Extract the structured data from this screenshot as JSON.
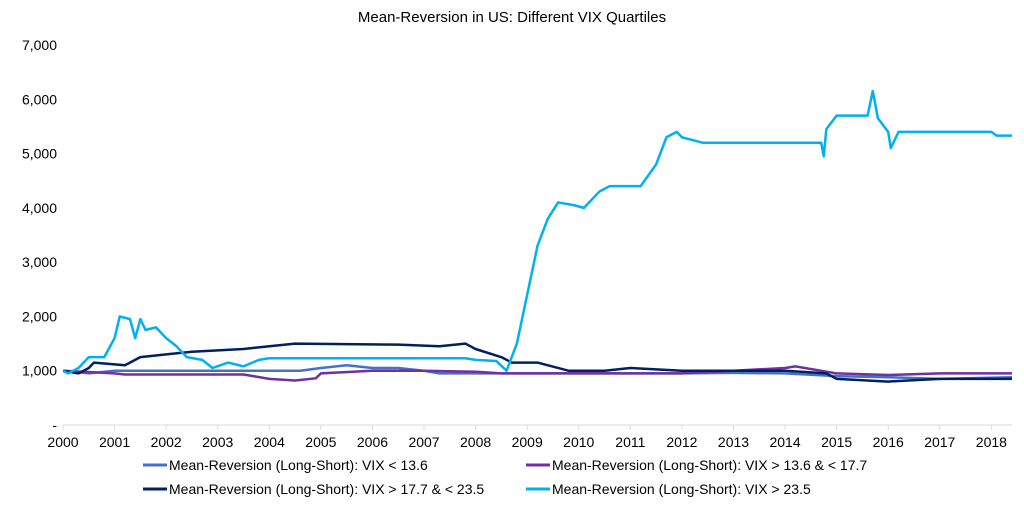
{
  "chart_data": {
    "type": "line",
    "title": "Mean-Reversion in US: Different VIX Quartiles",
    "xlabel": "",
    "ylabel": "",
    "xlim": [
      2000,
      2018.4
    ],
    "ylim": [
      0,
      7000
    ],
    "x_ticks": [
      "2000",
      "2001",
      "2002",
      "2003",
      "2004",
      "2005",
      "2006",
      "2007",
      "2008",
      "2009",
      "2010",
      "2011",
      "2012",
      "2013",
      "2014",
      "2015",
      "2016",
      "2017",
      "2018"
    ],
    "y_ticks": [
      "-",
      "1,000",
      "2,000",
      "3,000",
      "4,000",
      "5,000",
      "6,000",
      "7,000"
    ],
    "grid": false,
    "legend": "bottom",
    "series": [
      {
        "name": "Mean-Reversion (Long-Short): VIX < 13.6",
        "color": "#4472C4",
        "points": [
          [
            2000,
            1000
          ],
          [
            2000.5,
            950
          ],
          [
            2001,
            1000
          ],
          [
            2004.6,
            1000
          ],
          [
            2005,
            1050
          ],
          [
            2005.5,
            1100
          ],
          [
            2006,
            1050
          ],
          [
            2006.5,
            1050
          ],
          [
            2007,
            1000
          ],
          [
            2007.3,
            950
          ],
          [
            2008,
            950
          ],
          [
            2012,
            950
          ],
          [
            2013,
            960
          ],
          [
            2014,
            950
          ],
          [
            2015,
            900
          ],
          [
            2016,
            880
          ],
          [
            2017,
            850
          ],
          [
            2018.4,
            880
          ]
        ]
      },
      {
        "name": "Mean-Reversion (Long-Short): VIX > 13.6 & < 17.7",
        "color": "#7030A0",
        "points": [
          [
            2000,
            1000
          ],
          [
            2001,
            950
          ],
          [
            2001.2,
            930
          ],
          [
            2003.5,
            930
          ],
          [
            2004,
            850
          ],
          [
            2004.5,
            820
          ],
          [
            2004.9,
            860
          ],
          [
            2005,
            950
          ],
          [
            2006,
            1000
          ],
          [
            2007,
            1000
          ],
          [
            2008,
            980
          ],
          [
            2008.5,
            950
          ],
          [
            2010,
            950
          ],
          [
            2012,
            950
          ],
          [
            2013,
            1000
          ],
          [
            2014,
            1050
          ],
          [
            2014.2,
            1080
          ],
          [
            2015,
            950
          ],
          [
            2016,
            920
          ],
          [
            2017,
            950
          ],
          [
            2018.4,
            950
          ]
        ]
      },
      {
        "name": "Mean-Reversion (Long-Short): VIX > 17.7 & < 23.5",
        "color": "#002060",
        "points": [
          [
            2000,
            1000
          ],
          [
            2000.3,
            950
          ],
          [
            2000.5,
            1050
          ],
          [
            2000.6,
            1150
          ],
          [
            2001.2,
            1100
          ],
          [
            2001.5,
            1250
          ],
          [
            2002,
            1300
          ],
          [
            2002.5,
            1350
          ],
          [
            2003.5,
            1400
          ],
          [
            2004,
            1450
          ],
          [
            2004.5,
            1500
          ],
          [
            2006.5,
            1480
          ],
          [
            2007.3,
            1450
          ],
          [
            2007.8,
            1500
          ],
          [
            2008,
            1400
          ],
          [
            2008.5,
            1250
          ],
          [
            2008.7,
            1150
          ],
          [
            2009.2,
            1150
          ],
          [
            2009.8,
            1000
          ],
          [
            2010.5,
            1000
          ],
          [
            2011,
            1050
          ],
          [
            2012,
            1000
          ],
          [
            2013,
            1000
          ],
          [
            2014,
            1000
          ],
          [
            2014.8,
            950
          ],
          [
            2015,
            850
          ],
          [
            2016,
            800
          ],
          [
            2017,
            850
          ],
          [
            2018.4,
            850
          ]
        ]
      },
      {
        "name": "Mean-Reversion (Long-Short): VIX > 23.5",
        "color": "#00B0F0",
        "points": [
          [
            2000,
            1000
          ],
          [
            2000.1,
            950
          ],
          [
            2000.3,
            1050
          ],
          [
            2000.5,
            1250
          ],
          [
            2000.8,
            1250
          ],
          [
            2001,
            1600
          ],
          [
            2001.1,
            2000
          ],
          [
            2001.3,
            1950
          ],
          [
            2001.4,
            1600
          ],
          [
            2001.5,
            1950
          ],
          [
            2001.6,
            1750
          ],
          [
            2001.8,
            1800
          ],
          [
            2002,
            1600
          ],
          [
            2002.2,
            1450
          ],
          [
            2002.4,
            1250
          ],
          [
            2002.7,
            1200
          ],
          [
            2002.9,
            1050
          ],
          [
            2003.2,
            1150
          ],
          [
            2003.5,
            1080
          ],
          [
            2003.8,
            1200
          ],
          [
            2004,
            1230
          ],
          [
            2007.8,
            1230
          ],
          [
            2008,
            1200
          ],
          [
            2008.4,
            1180
          ],
          [
            2008.6,
            1000
          ],
          [
            2008.8,
            1500
          ],
          [
            2009,
            2400
          ],
          [
            2009.2,
            3300
          ],
          [
            2009.4,
            3800
          ],
          [
            2009.6,
            4100
          ],
          [
            2009.9,
            4050
          ],
          [
            2010.1,
            4000
          ],
          [
            2010.4,
            4300
          ],
          [
            2010.6,
            4400
          ],
          [
            2011.2,
            4400
          ],
          [
            2011.5,
            4800
          ],
          [
            2011.7,
            5300
          ],
          [
            2011.9,
            5400
          ],
          [
            2012,
            5300
          ],
          [
            2012.4,
            5200
          ],
          [
            2014.7,
            5200
          ],
          [
            2014.75,
            4950
          ],
          [
            2014.8,
            5450
          ],
          [
            2015,
            5700
          ],
          [
            2015.6,
            5700
          ],
          [
            2015.7,
            6150
          ],
          [
            2015.8,
            5650
          ],
          [
            2016,
            5400
          ],
          [
            2016.05,
            5100
          ],
          [
            2016.2,
            5400
          ],
          [
            2018,
            5400
          ],
          [
            2018.1,
            5330
          ],
          [
            2018.4,
            5330
          ]
        ]
      }
    ]
  }
}
